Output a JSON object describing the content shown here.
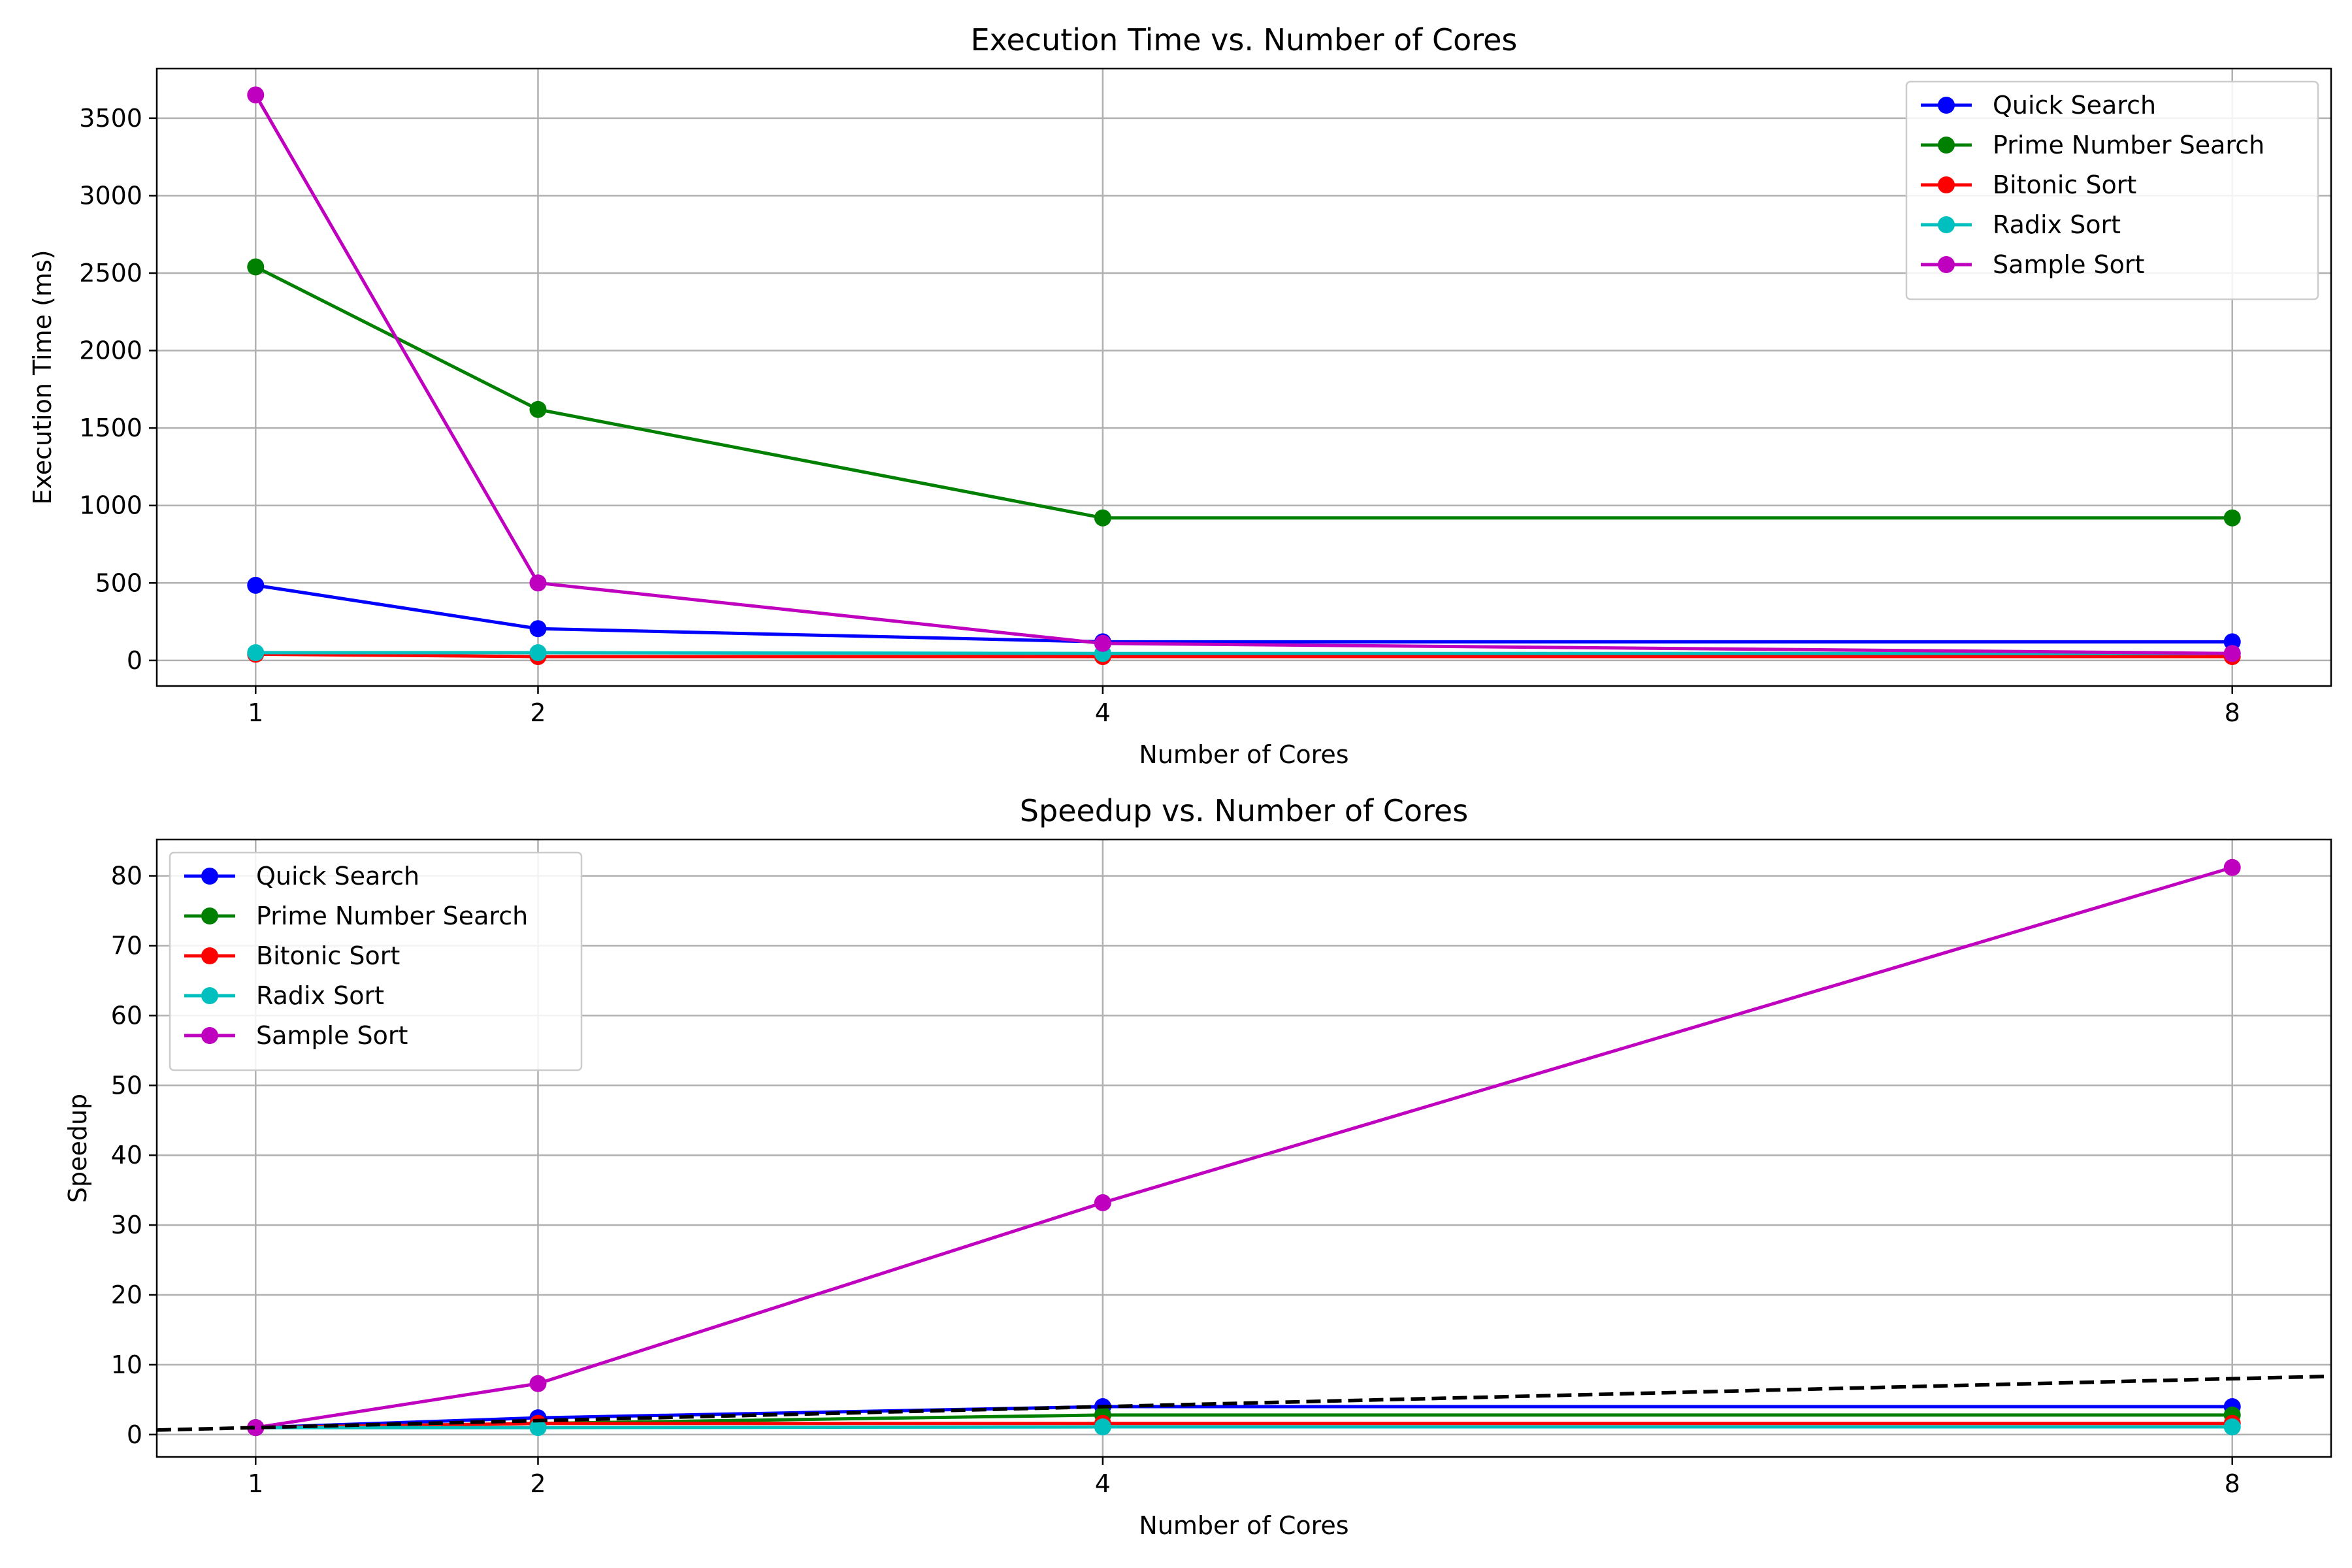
{
  "chart_data": [
    {
      "type": "line",
      "title": "Execution Time vs. Number of Cores",
      "xlabel": "Number of Cores",
      "ylabel": "Execution Time (ms)",
      "x": [
        1,
        2,
        4,
        8
      ],
      "xticks": [
        "1",
        "2",
        "4",
        "8"
      ],
      "xlim": [
        0.65,
        8.35
      ],
      "ylim": [
        -165,
        3820
      ],
      "yticks": [
        0,
        500,
        1000,
        1500,
        2000,
        2500,
        3000,
        3500
      ],
      "grid": true,
      "legend": "top-right",
      "series": [
        {
          "name": "Quick Search",
          "color": "#0000ff",
          "values": [
            485,
            205,
            120,
            120
          ]
        },
        {
          "name": "Prime Number Search",
          "color": "#008000",
          "values": [
            2540,
            1620,
            920,
            920
          ]
        },
        {
          "name": "Bitonic Sort",
          "color": "#ff0000",
          "values": [
            40,
            25,
            25,
            25
          ]
        },
        {
          "name": "Radix Sort",
          "color": "#00bfbf",
          "values": [
            50,
            50,
            45,
            45
          ]
        },
        {
          "name": "Sample Sort",
          "color": "#bf00bf",
          "values": [
            3650,
            500,
            110,
            45
          ]
        }
      ]
    },
    {
      "type": "line",
      "title": "Speedup vs. Number of Cores",
      "xlabel": "Number of Cores",
      "ylabel": "Speedup",
      "x": [
        1,
        2,
        4,
        8
      ],
      "xticks": [
        "1",
        "2",
        "4",
        "8"
      ],
      "xlim": [
        0.65,
        8.35
      ],
      "ylim": [
        -3.2,
        85.2
      ],
      "yticks": [
        0,
        10,
        20,
        30,
        40,
        50,
        60,
        70,
        80
      ],
      "grid": true,
      "legend": "top-left",
      "series": [
        {
          "name": "Quick Search",
          "color": "#0000ff",
          "values": [
            1,
            2.4,
            4.0,
            4.0
          ]
        },
        {
          "name": "Prime Number Search",
          "color": "#008000",
          "values": [
            1,
            1.6,
            2.8,
            2.8
          ]
        },
        {
          "name": "Bitonic Sort",
          "color": "#ff0000",
          "values": [
            1,
            1.6,
            1.6,
            1.6
          ]
        },
        {
          "name": "Radix Sort",
          "color": "#00bfbf",
          "values": [
            1,
            1.0,
            1.1,
            1.1
          ]
        },
        {
          "name": "Sample Sort",
          "color": "#bf00bf",
          "values": [
            1,
            7.3,
            33.2,
            81.2
          ]
        }
      ],
      "reference_line": {
        "style": "dashed",
        "color": "#000000",
        "x": [
          0.65,
          8.35
        ],
        "y": [
          0.65,
          8.35
        ]
      }
    }
  ]
}
